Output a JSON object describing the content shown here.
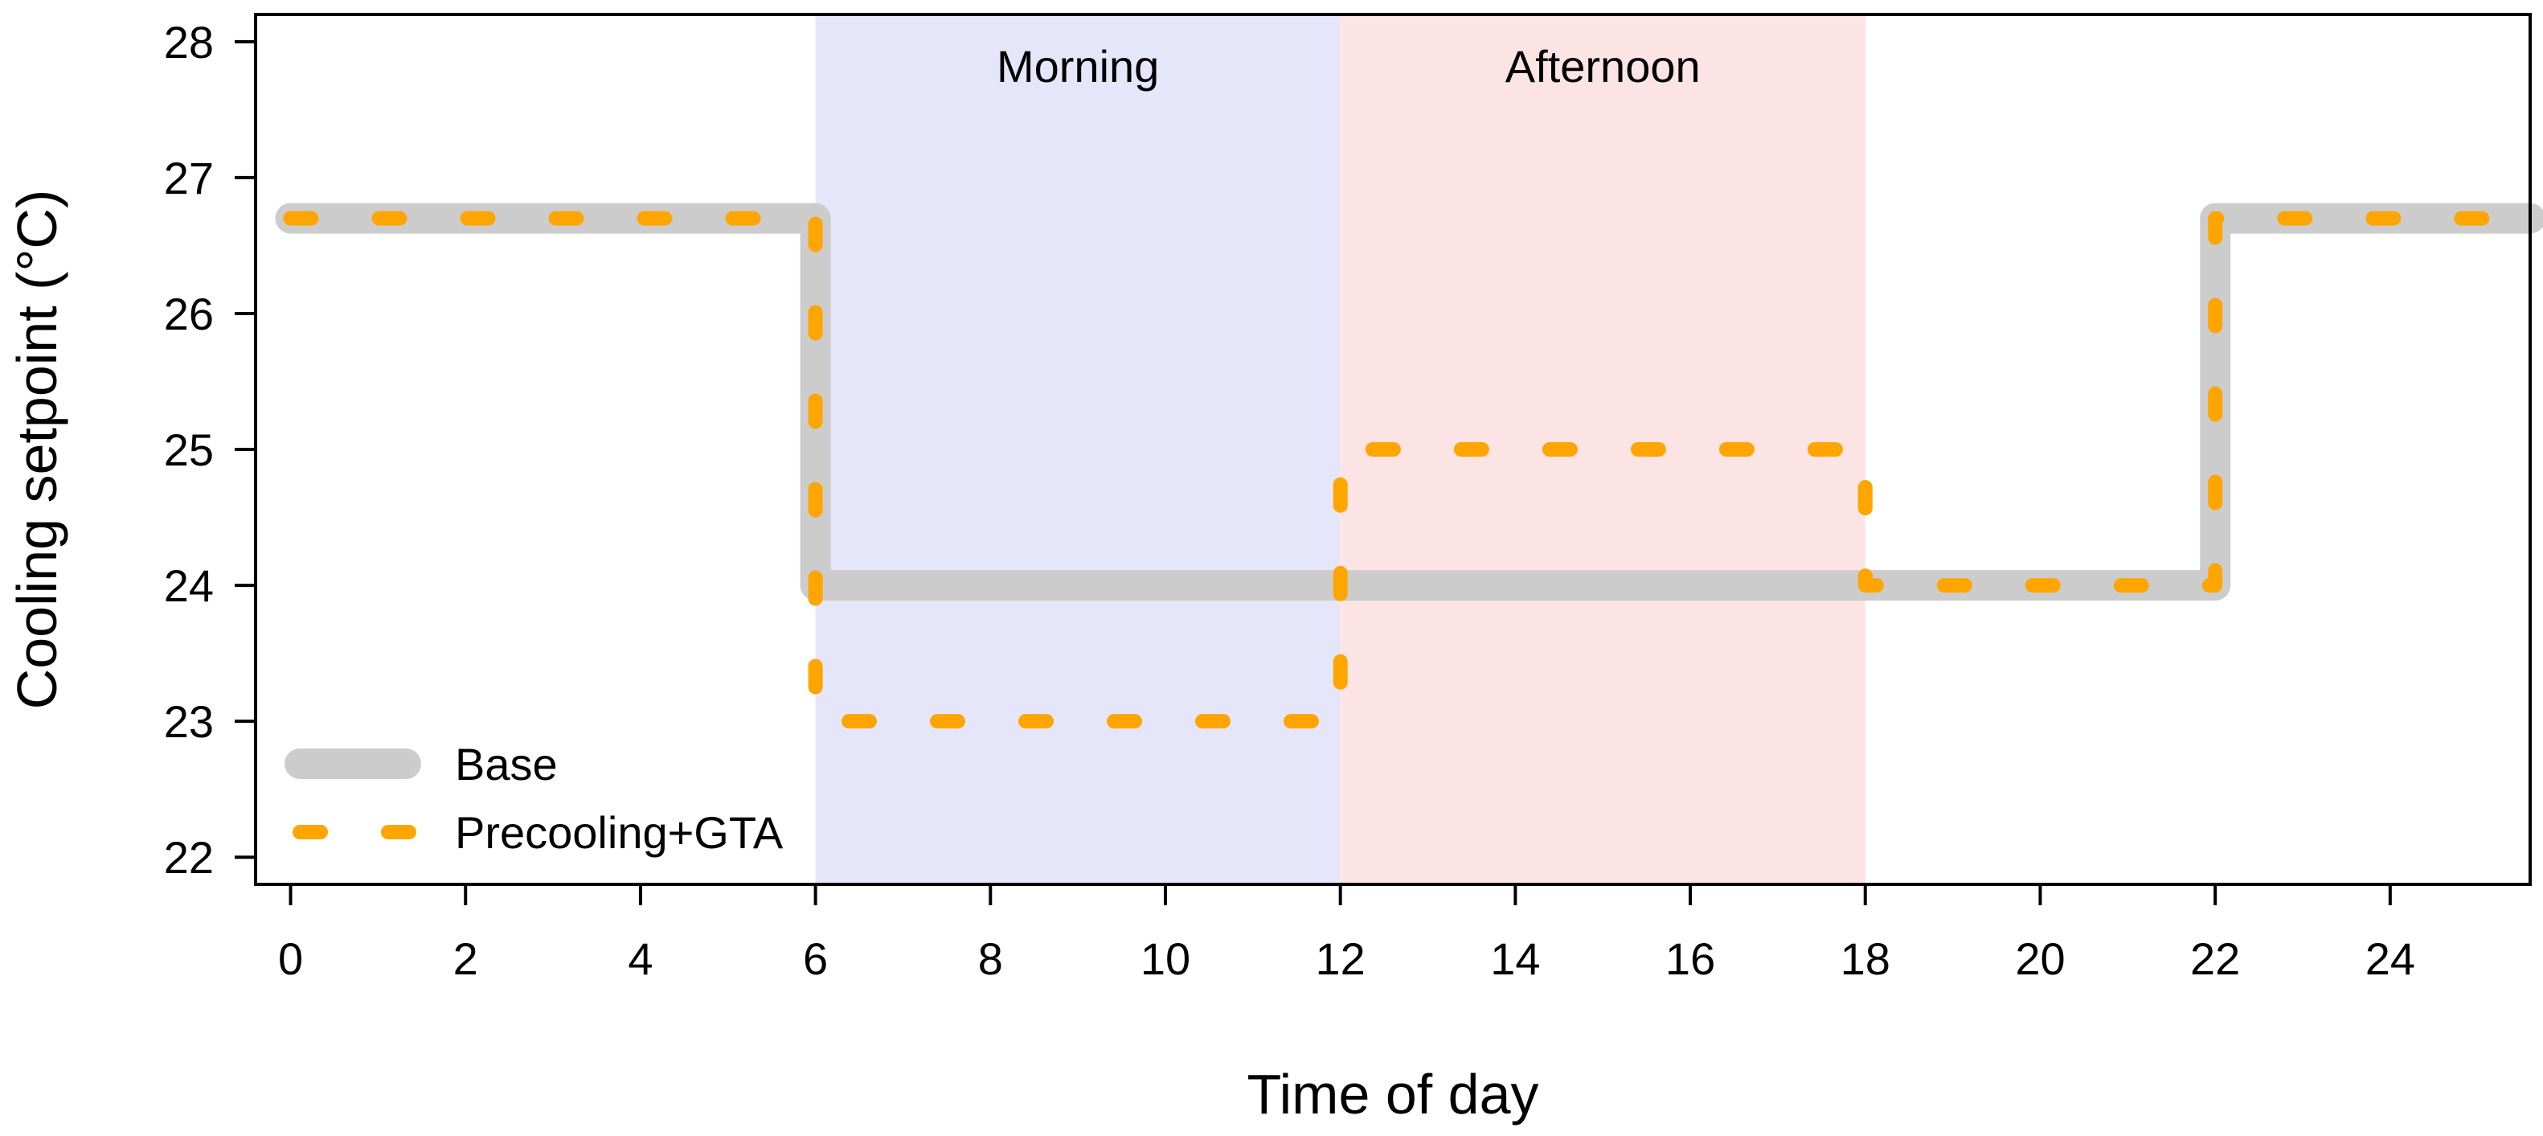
{
  "chart_data": {
    "type": "line",
    "title": "",
    "xlabel": "Time of day",
    "ylabel": "Cooling setpoint (°C)",
    "xlim": [
      -0.4,
      25.6
    ],
    "ylim": [
      21.8,
      28.2
    ],
    "xticks": [
      0,
      2,
      4,
      6,
      8,
      10,
      12,
      14,
      16,
      18,
      20,
      22,
      24
    ],
    "yticks": [
      22,
      23,
      24,
      25,
      26,
      27,
      28
    ],
    "grid": false,
    "legend_position": "bottom-left",
    "periods": [
      {
        "label": "Morning",
        "start": 6,
        "end": 12,
        "color": "#e6e6fa"
      },
      {
        "label": "Afternoon",
        "start": 12,
        "end": 18,
        "color": "#fde4e4"
      }
    ],
    "series": [
      {
        "name": "Base",
        "style": "solid",
        "color": "#cccccc",
        "step_points": [
          [
            0,
            26.7
          ],
          [
            6,
            26.7
          ],
          [
            6,
            24.0
          ],
          [
            22,
            24.0
          ],
          [
            22,
            26.7
          ],
          [
            25.6,
            26.7
          ]
        ]
      },
      {
        "name": "Precooling+GTA",
        "style": "dashed",
        "color": "#ffa500",
        "step_points": [
          [
            0,
            26.7
          ],
          [
            6,
            26.7
          ],
          [
            6,
            23.0
          ],
          [
            12,
            23.0
          ],
          [
            12,
            25.0
          ],
          [
            18,
            25.0
          ],
          [
            18,
            24.0
          ],
          [
            22,
            24.0
          ],
          [
            22,
            26.7
          ],
          [
            25.6,
            26.7
          ]
        ]
      }
    ]
  }
}
